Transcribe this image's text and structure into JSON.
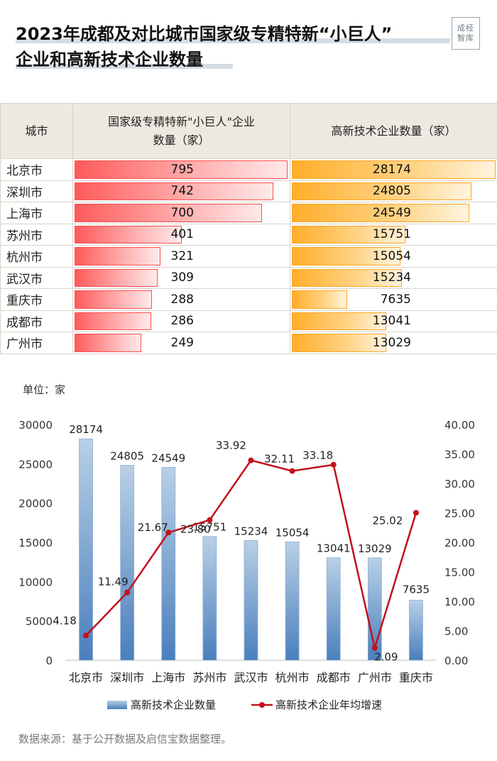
{
  "title": {
    "line1": "2023年成都及对比城市国家级专精特新“小巨人”",
    "line2": "企业和高新技术企业数量"
  },
  "logo": {
    "line1": "成经",
    "line2": "智库"
  },
  "table": {
    "headers": [
      "城市",
      "国家级专精特新\"小巨人\"企业\n数量（家）",
      "高新技术企业数量（家）"
    ],
    "rows": [
      {
        "city": "北京市",
        "little_giant": 795,
        "high_tech": 28174
      },
      {
        "city": "深圳市",
        "little_giant": 742,
        "high_tech": 24805
      },
      {
        "city": "上海市",
        "little_giant": 700,
        "high_tech": 24549
      },
      {
        "city": "苏州市",
        "little_giant": 401,
        "high_tech": 15751
      },
      {
        "city": "杭州市",
        "little_giant": 321,
        "high_tech": 15054
      },
      {
        "city": "武汉市",
        "little_giant": 309,
        "high_tech": 15234
      },
      {
        "city": "重庆市",
        "little_giant": 288,
        "high_tech": 7635
      },
      {
        "city": "成都市",
        "little_giant": 286,
        "high_tech": 13041
      },
      {
        "city": "广州市",
        "little_giant": 249,
        "high_tech": 13029
      }
    ]
  },
  "chart_unit": "单位：家",
  "chart_data": {
    "type": "bar",
    "categories": [
      "北京市",
      "深圳市",
      "上海市",
      "苏州市",
      "武汉市",
      "杭州市",
      "成都市",
      "广州市",
      "重庆市"
    ],
    "series": [
      {
        "name": "高新技术企业数量",
        "type": "bar",
        "axis": "left",
        "values": [
          28174,
          24805,
          24549,
          15751,
          15234,
          15054,
          13041,
          13029,
          7635
        ]
      },
      {
        "name": "高新技术企业年均增速",
        "type": "line",
        "axis": "right",
        "values": [
          4.18,
          11.49,
          21.67,
          23.8,
          33.92,
          32.11,
          33.18,
          2.09,
          25.02
        ]
      }
    ],
    "y_left": {
      "min": 0,
      "max": 30000,
      "ticks": [
        0,
        5000,
        10000,
        15000,
        20000,
        25000,
        30000
      ]
    },
    "y_right": {
      "min": 0,
      "max": 40,
      "ticks": [
        "0.00",
        "5.00",
        "10.00",
        "15.00",
        "20.00",
        "25.00",
        "30.00",
        "35.00",
        "40.00"
      ]
    },
    "line_labels": [
      "4.18",
      "11.49",
      "21.67",
      "23.80",
      "33.92",
      "32.11",
      "33.18",
      "2.09",
      "25.02"
    ],
    "legend_position": "bottom",
    "colors": {
      "bar_top": "#b9d0e6",
      "bar_bottom": "#4a7fbd",
      "line": "#c0121b"
    }
  },
  "source": "数据来源：基于公开数据及启信宝数据整理。"
}
